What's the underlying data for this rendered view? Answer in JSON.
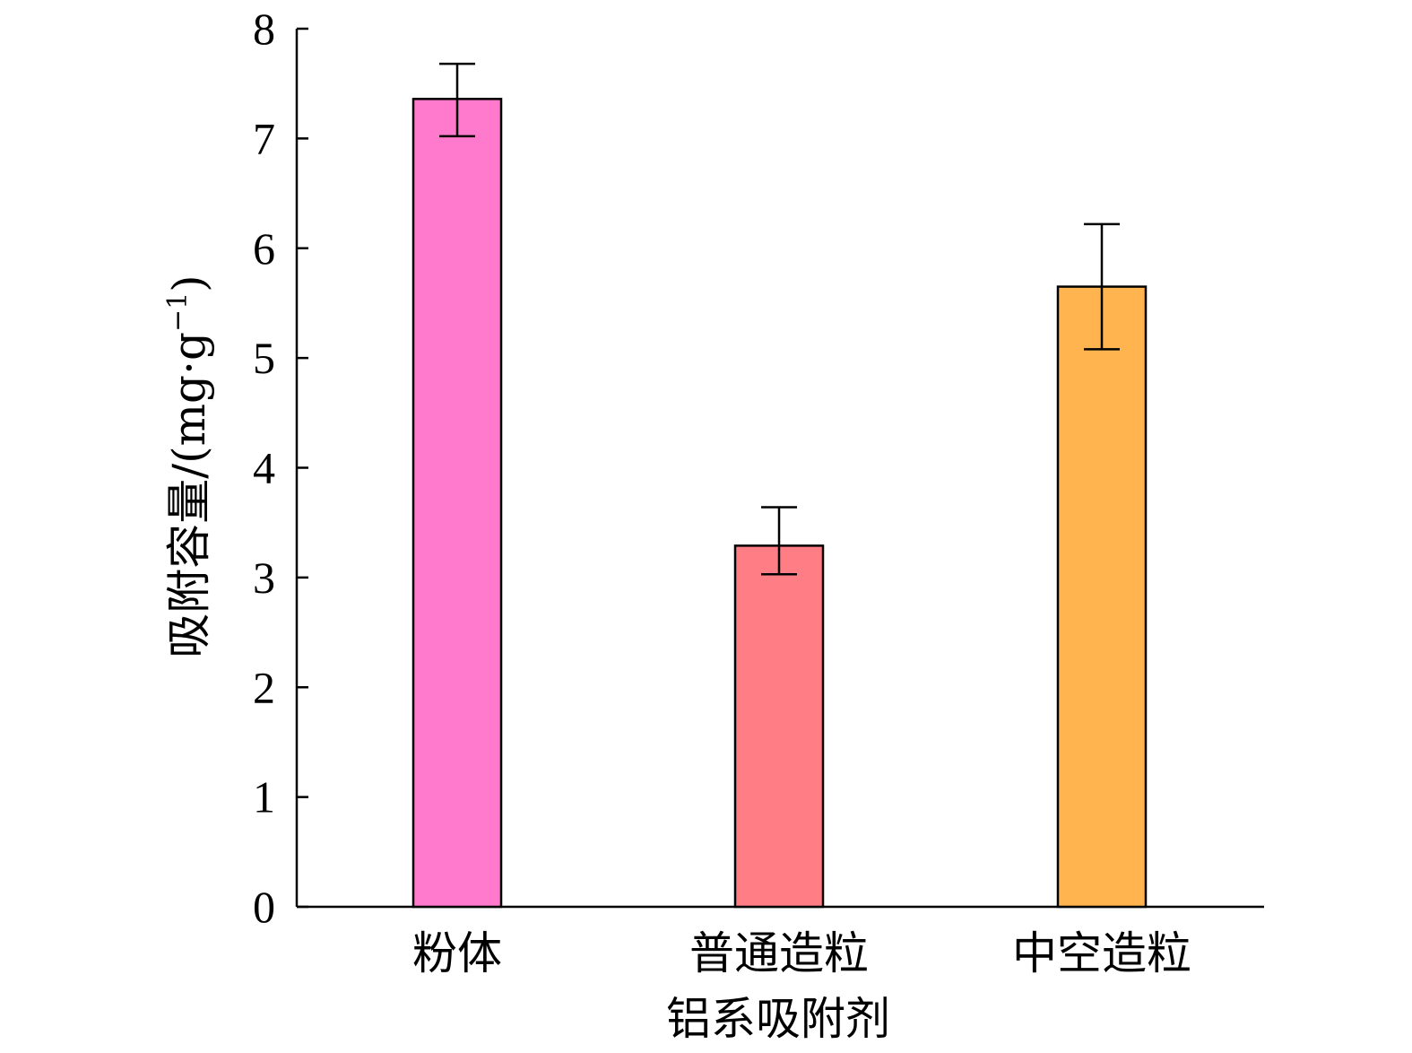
{
  "chart_data": {
    "type": "bar",
    "categories": [
      "粉体",
      "普通造粒",
      "中空造粒"
    ],
    "series": [
      {
        "values": [
          7.36,
          3.29,
          5.65
        ],
        "error_low": [
          7.02,
          3.03,
          5.08
        ],
        "error_high": [
          7.68,
          3.64,
          6.22
        ],
        "colors": [
          "#ff7acc",
          "#ff7d84",
          "#ffb44f"
        ]
      }
    ],
    "xlabel": "铝系吸附剂",
    "ylabel": {
      "main": "吸附容量/(mg·g",
      "superscript": "−1",
      "tail": ")"
    },
    "ylim": [
      0,
      8
    ],
    "yticks": [
      0,
      1,
      2,
      3,
      4,
      5,
      6,
      7,
      8
    ],
    "grid": false,
    "legend": "none"
  }
}
